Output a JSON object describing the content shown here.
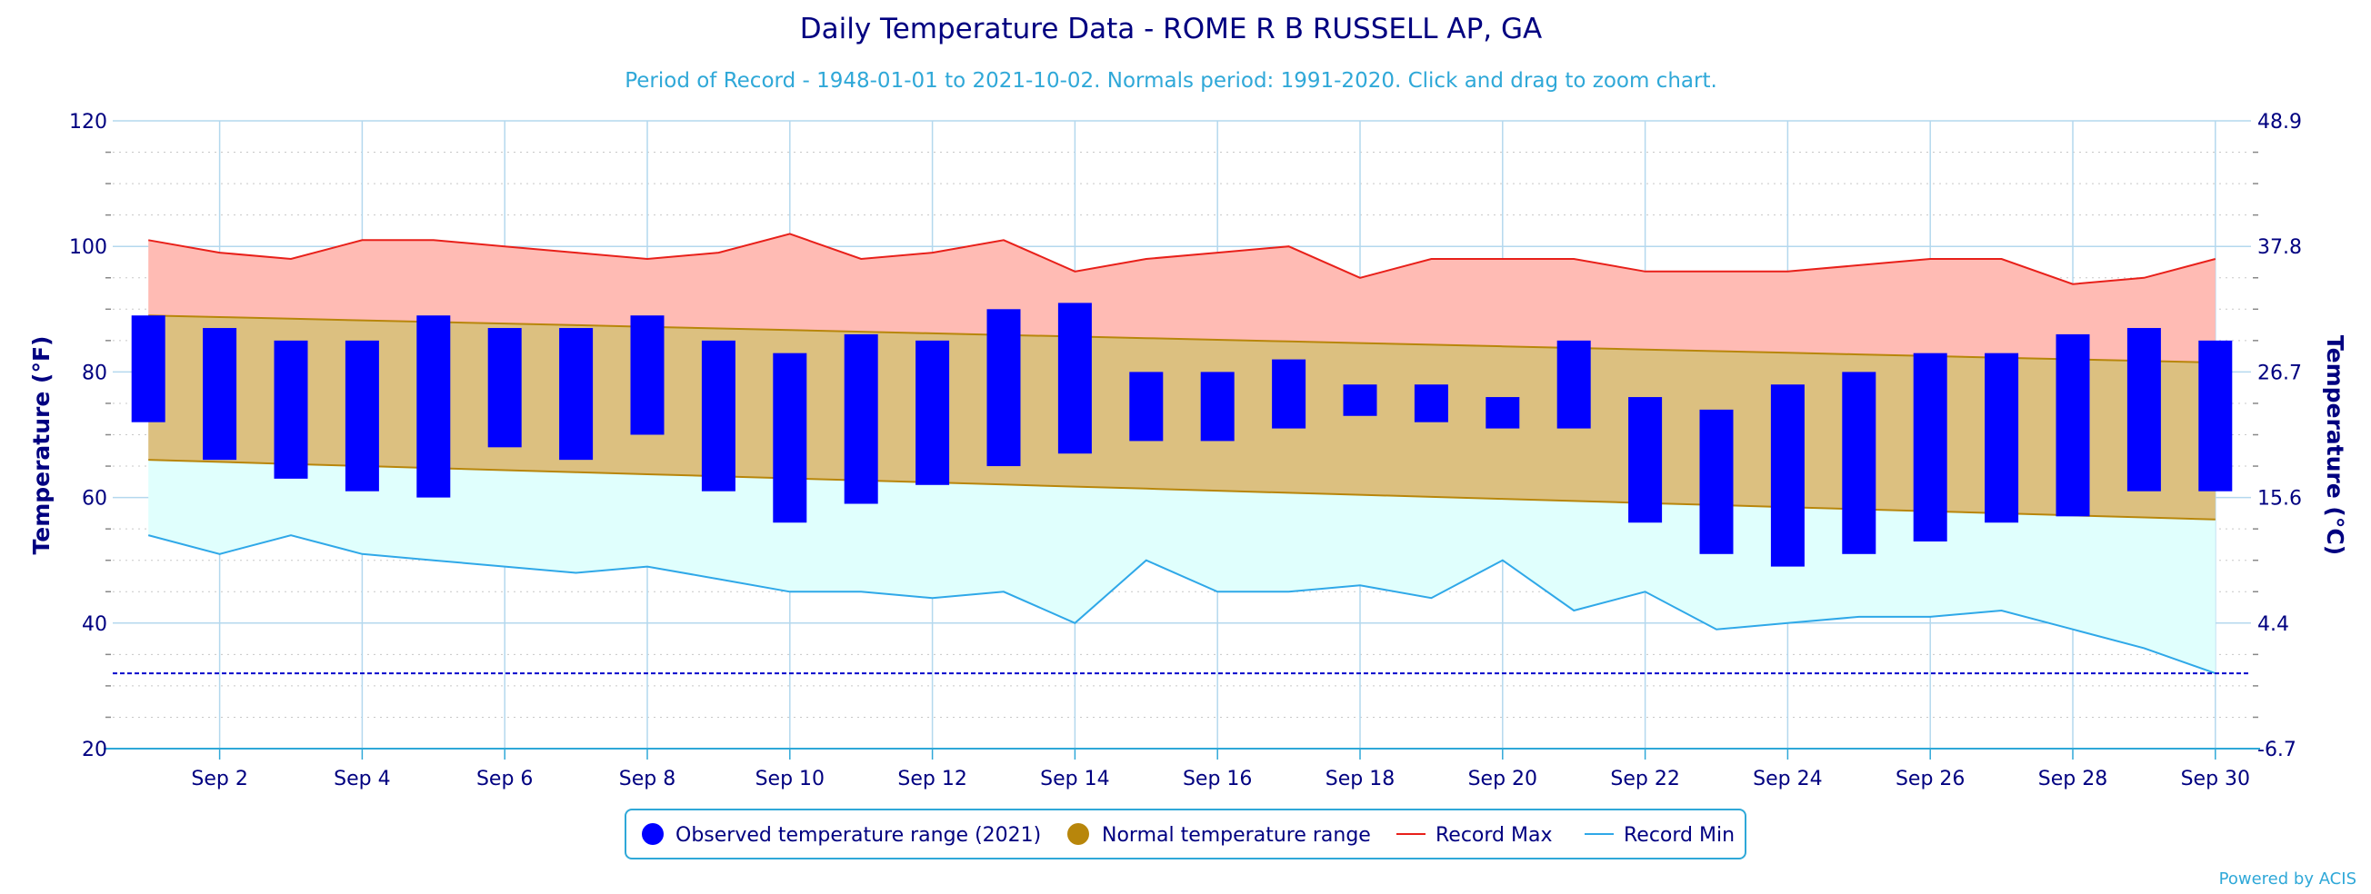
{
  "chart_data": {
    "type": "bar",
    "title": "Daily Temperature Data - ROME R B RUSSELL AP, GA",
    "subtitle": "Period of Record - 1948-01-01 to 2021-10-02. Normals period: 1991-2020. Click and drag to zoom chart.",
    "ylabel_left": "Temperature (°F)",
    "ylabel_right": "Temperature (°C)",
    "ylim": [
      20,
      120
    ],
    "y_ticks_f": [
      "20",
      "40",
      "60",
      "80",
      "100",
      "120"
    ],
    "y_ticks_c": [
      "-6.7",
      "4.4",
      "15.6",
      "26.7",
      "37.8",
      "48.9"
    ],
    "x_tick_labels": [
      "Sep 2",
      "Sep 4",
      "Sep 6",
      "Sep 8",
      "Sep 10",
      "Sep 12",
      "Sep 14",
      "Sep 16",
      "Sep 18",
      "Sep 20",
      "Sep 22",
      "Sep 24",
      "Sep 26",
      "Sep 28",
      "Sep 30"
    ],
    "days": [
      1,
      2,
      3,
      4,
      5,
      6,
      7,
      8,
      9,
      10,
      11,
      12,
      13,
      14,
      15,
      16,
      17,
      18,
      19,
      20,
      21,
      22,
      23,
      24,
      25,
      26,
      27,
      28,
      29,
      30
    ],
    "observed_high": [
      89,
      87,
      85,
      85,
      89,
      87,
      87,
      89,
      85,
      83,
      86,
      85,
      90,
      91,
      80,
      80,
      82,
      78,
      78,
      76,
      85,
      76,
      74,
      78,
      80,
      83,
      83,
      86,
      87,
      85
    ],
    "observed_low": [
      72,
      66,
      63,
      61,
      60,
      68,
      66,
      70,
      61,
      56,
      59,
      62,
      65,
      67,
      69,
      69,
      71,
      73,
      72,
      71,
      71,
      56,
      51,
      49,
      51,
      53,
      56,
      57,
      61,
      61
    ],
    "normal_high_start": 89,
    "normal_high_end": 81.5,
    "normal_low_start": 66,
    "normal_low_end": 56.5,
    "record_max": [
      101,
      99,
      98,
      101,
      101,
      100,
      99,
      98,
      99,
      102,
      98,
      99,
      101,
      96,
      98,
      99,
      100,
      95,
      98,
      98,
      98,
      96,
      96,
      96,
      97,
      98,
      98,
      94,
      95,
      98
    ],
    "record_min": [
      54,
      51,
      54,
      51,
      50,
      49,
      48,
      49,
      47,
      45,
      45,
      44,
      45,
      40,
      50,
      45,
      45,
      46,
      44,
      50,
      42,
      45,
      39,
      40,
      41,
      41,
      42,
      39,
      36,
      32
    ],
    "freezing_line": 32,
    "legend": [
      {
        "label": "Observed temperature range (2021)",
        "color": "#0000ff"
      },
      {
        "label": "Normal temperature range",
        "color": "#b8860b"
      },
      {
        "label": "Record Max",
        "color": "#e8201a"
      },
      {
        "label": "Record Min",
        "color": "#2fa8e8"
      }
    ],
    "colors": {
      "observed": "#0000ff",
      "normal_fill": "#dcc080",
      "normal_line": "#b8860b",
      "record_max_fill": "#ffbbb4",
      "record_max_line": "#e8201a",
      "record_min_fill": "#e0fffd",
      "record_min_line": "#2fa8e8",
      "grid": "#b4d8ee",
      "freezing": "#0000cc"
    }
  },
  "credits": "Powered by ACIS"
}
